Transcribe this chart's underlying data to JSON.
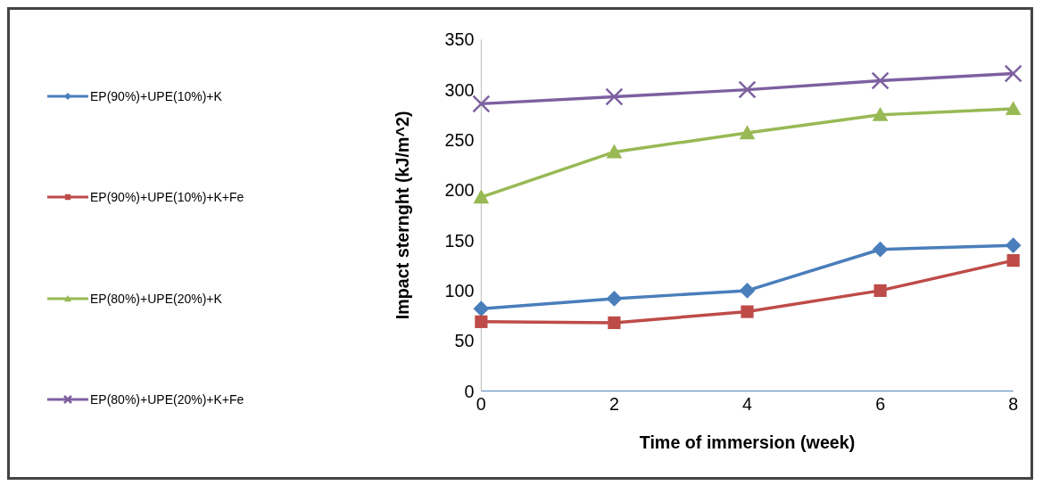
{
  "chart_data": {
    "type": "line",
    "xlabel": "Time of immersion (week)",
    "ylabel": "Impact sternght (kJ/m^2)",
    "categories": [
      "0",
      "2",
      "4",
      "6",
      "8"
    ],
    "ylim": [
      0,
      350
    ],
    "yticks": [
      0,
      50,
      100,
      150,
      200,
      250,
      300,
      350
    ],
    "grid": false,
    "legend": "left",
    "series": [
      {
        "name": "EP(90%)+UPE(10%)+K",
        "color": "#4a7ebb",
        "marker": "diamond",
        "values": [
          82,
          92,
          100,
          141,
          145
        ]
      },
      {
        "name": "EP(90%)+UPE(10%)+K+Fe",
        "color": "#be4b48",
        "marker": "square",
        "values": [
          69,
          68,
          79,
          100,
          130
        ]
      },
      {
        "name": "EP(80%)+UPE(20%)+K",
        "color": "#98b954",
        "marker": "triangle",
        "values": [
          193,
          238,
          257,
          275,
          281
        ]
      },
      {
        "name": "EP(80%)+UPE(20%)+K+Fe",
        "color": "#7d60a0",
        "marker": "cross",
        "values": [
          286,
          293,
          300,
          309,
          316
        ]
      }
    ]
  }
}
